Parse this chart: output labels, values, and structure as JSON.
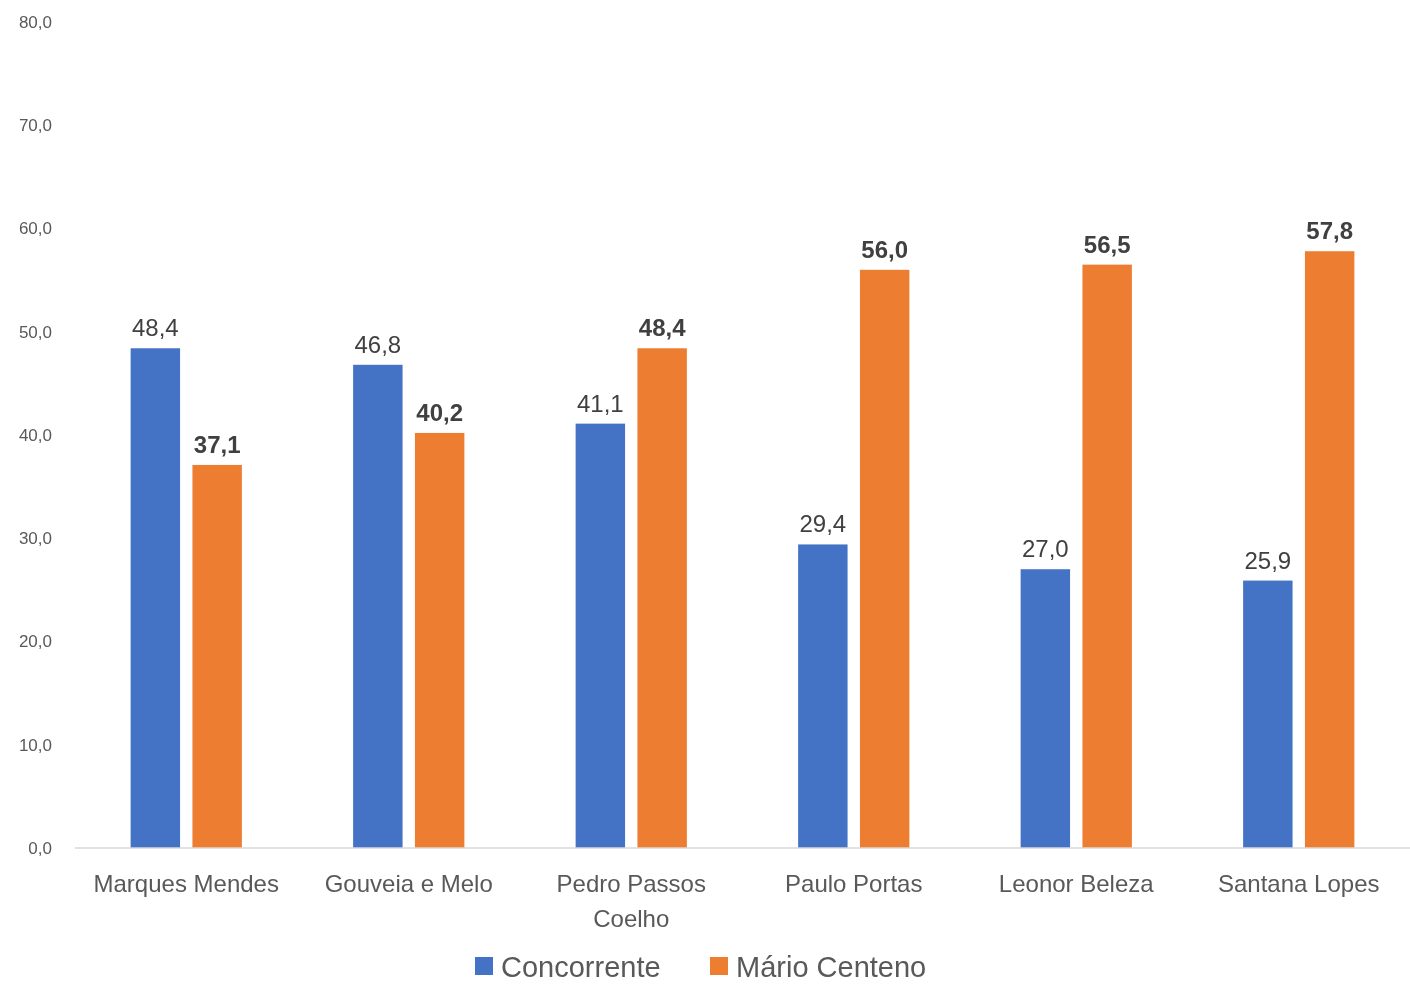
{
  "chart_data": {
    "type": "bar",
    "categories": [
      "Marques Mendes",
      "Gouveia e Melo",
      "Pedro Passos Coelho",
      "Paulo Portas",
      "Leonor Beleza",
      "Santana Lopes"
    ],
    "series": [
      {
        "name": "Concorrente",
        "color": "#4472c4",
        "values": [
          48.4,
          46.8,
          41.1,
          29.4,
          27.0,
          25.9
        ],
        "value_labels": [
          "48,4",
          "46,8",
          "41,1",
          "29,4",
          "27,0",
          "25,9"
        ]
      },
      {
        "name": "Mário Centeno",
        "color": "#ed7d31",
        "values": [
          37.1,
          40.2,
          48.4,
          56.0,
          56.5,
          57.8
        ],
        "value_labels": [
          "37,1",
          "40,2",
          "48,4",
          "56,0",
          "56,5",
          "57,8"
        ]
      }
    ],
    "ylim": [
      0,
      80
    ],
    "yticks": [
      {
        "value": 0,
        "label": "0,0"
      },
      {
        "value": 10,
        "label": "10,0"
      },
      {
        "value": 20,
        "label": "20,0"
      },
      {
        "value": 30,
        "label": "30,0"
      },
      {
        "value": 40,
        "label": "40,0"
      },
      {
        "value": 50,
        "label": "50,0"
      },
      {
        "value": 60,
        "label": "60,0"
      },
      {
        "value": 70,
        "label": "70,0"
      },
      {
        "value": 80,
        "label": "80,0"
      }
    ],
    "grid": false,
    "legend": "bottom"
  }
}
